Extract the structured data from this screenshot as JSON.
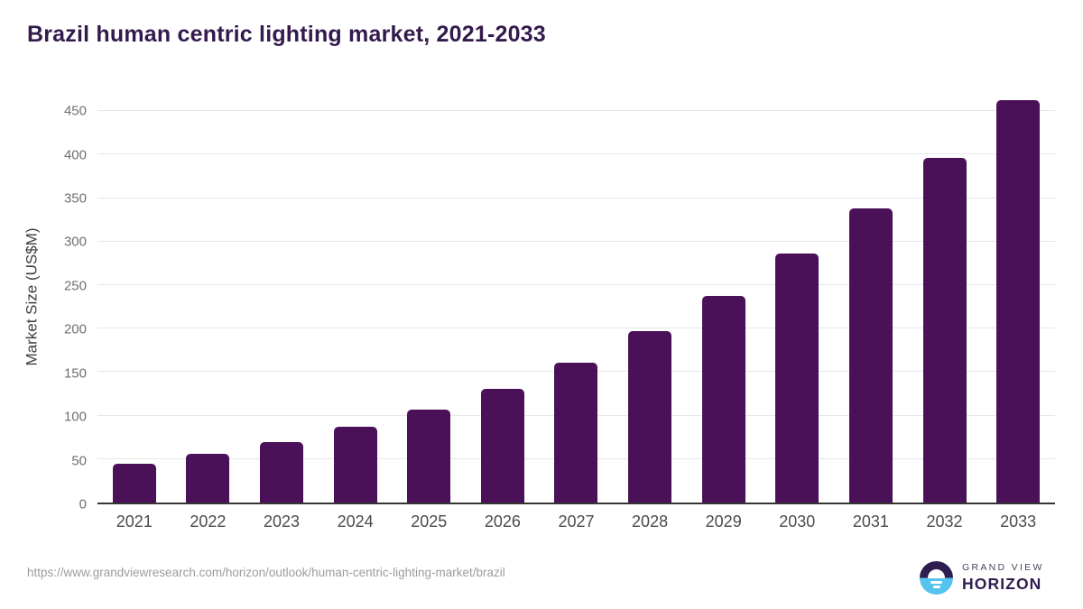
{
  "title": "Brazil human centric lighting market, 2021-2033",
  "chart_data": {
    "type": "bar",
    "categories": [
      "2021",
      "2022",
      "2023",
      "2024",
      "2025",
      "2026",
      "2027",
      "2028",
      "2029",
      "2030",
      "2031",
      "2032",
      "2033"
    ],
    "values": [
      45,
      56,
      70,
      87,
      107,
      131,
      161,
      197,
      238,
      286,
      338,
      396,
      463
    ],
    "title": "Brazil human centric lighting market, 2021-2033",
    "xlabel": "",
    "ylabel": "Market Size (US$M)",
    "ylim": [
      0,
      475
    ],
    "yticks": [
      0,
      50,
      100,
      150,
      200,
      250,
      300,
      350,
      400,
      450
    ],
    "grid": "horizontal",
    "legend": "none"
  },
  "colors": {
    "bar": "#4a1158",
    "title": "#331a4d",
    "grid": "#e7e7ea",
    "axis": "#343434",
    "y_tick_label": "#6f6f6f",
    "x_tick_label": "#4b4b4b",
    "logo_purple": "#2e1d4e",
    "logo_blue": "#56c3ef"
  },
  "footer": {
    "source_url": "https://www.grandviewresearch.com/horizon/outlook/human-centric-lighting-market/brazil",
    "logo": {
      "top": "GRAND VIEW",
      "bottom": "HORIZON"
    }
  }
}
